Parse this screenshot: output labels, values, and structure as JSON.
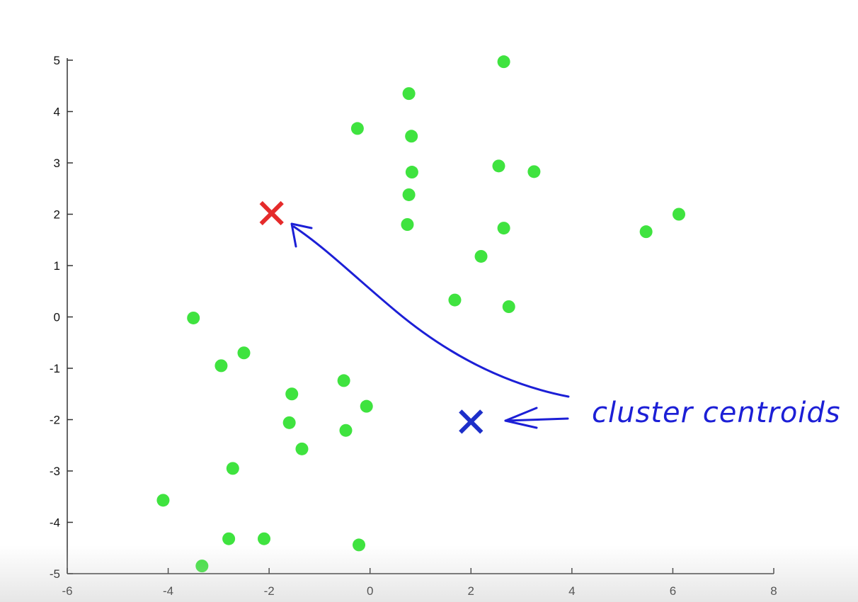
{
  "chart_data": {
    "type": "scatter",
    "xlim": [
      -6,
      8
    ],
    "ylim": [
      -5,
      5
    ],
    "xticks": [
      "-6",
      "-4",
      "-2",
      "0",
      "2",
      "4",
      "6",
      "8"
    ],
    "yticks": [
      "-5",
      "-4",
      "-3",
      "-2",
      "-1",
      "0",
      "1",
      "2",
      "3",
      "4",
      "5"
    ],
    "grid": false,
    "points_color": "#3fe33f",
    "points": [
      [
        2.65,
        4.97
      ],
      [
        0.77,
        4.35
      ],
      [
        -0.25,
        3.67
      ],
      [
        0.82,
        3.52
      ],
      [
        2.55,
        2.94
      ],
      [
        3.25,
        2.83
      ],
      [
        0.83,
        2.82
      ],
      [
        0.77,
        2.38
      ],
      [
        6.12,
        2.0
      ],
      [
        0.74,
        1.8
      ],
      [
        2.65,
        1.73
      ],
      [
        5.47,
        1.66
      ],
      [
        2.2,
        1.18
      ],
      [
        1.68,
        0.33
      ],
      [
        2.75,
        0.2
      ],
      [
        -3.5,
        -0.02
      ],
      [
        -2.5,
        -0.7
      ],
      [
        -2.95,
        -0.95
      ],
      [
        -0.52,
        -1.24
      ],
      [
        -1.55,
        -1.5
      ],
      [
        -0.07,
        -1.74
      ],
      [
        -1.6,
        -2.06
      ],
      [
        -0.48,
        -2.21
      ],
      [
        -1.35,
        -2.57
      ],
      [
        -2.72,
        -2.95
      ],
      [
        -4.1,
        -3.57
      ],
      [
        -2.8,
        -4.32
      ],
      [
        -2.1,
        -4.32
      ],
      [
        -0.22,
        -4.44
      ],
      [
        -3.33,
        -4.85
      ]
    ],
    "centroids": [
      {
        "x": -1.95,
        "y": 2.02,
        "color": "#e52b2b"
      },
      {
        "x": 2.0,
        "y": -2.04,
        "color": "#1d2fc9"
      }
    ]
  },
  "annotation": {
    "text": "cluster centroids",
    "color": "#1c1fd6"
  }
}
